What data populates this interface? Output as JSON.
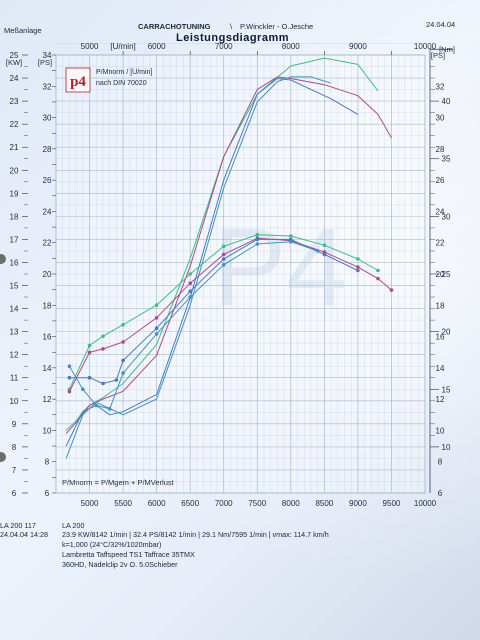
{
  "header": {
    "left": "Meßanlage",
    "company": "CARRACHOTUNING",
    "separator": "\\",
    "authors": "P.Winckler - O.Jesche",
    "date": "24.04.04",
    "title": "Leistungsdiagramm"
  },
  "logo": "p4",
  "legend_note": {
    "line1": "P/Mnorm / [U/min]",
    "line2": "nach DIN 70020"
  },
  "formula": "P/Mnorm = P/Mgem + P/MVerlust",
  "watermark": "P4",
  "footer": {
    "left_id": "LA 200 117",
    "left_date": "24.04.04  14:28",
    "run_id": "LA 200",
    "summary": "23.9 KW/8142 1/min  |  32.4 PS/8142 1/min  |  29.1 Nm/7595 1/min  |  vmax: 114.7 km/h",
    "conditions": "k=1,000 (24°C/32%/1020mbar)",
    "vehicle": "Lambretta Taffspeed TS1 Taffrace 35TMX",
    "setup": "360HD, Nadelclip 2v O. 5.0Schieber"
  },
  "colors": {
    "grid": "#9db6c8",
    "axis_text": "#1e2b45",
    "green": "#3bbf86",
    "purple": "#b0488a",
    "blue": "#4a78c9",
    "cyan": "#3e92c4"
  },
  "chart_data": {
    "type": "line",
    "title": "Leistungsdiagramm",
    "x_top_label": "[U/min]",
    "x_top_ticks": [
      5000,
      6000,
      7000,
      8000,
      9000,
      10000
    ],
    "x_top_minor": [
      5500,
      6500,
      7500,
      8500,
      9500
    ],
    "x_bottom_ticks": [
      5000,
      6000,
      7000,
      8000,
      9000,
      10000
    ],
    "x_bottom_minor": [
      5500,
      6500,
      7500,
      8500,
      9500
    ],
    "xlim": [
      4500,
      10000
    ],
    "kw_label": "[KW]",
    "kw_ticks": [
      6,
      7,
      8,
      9,
      10,
      11,
      12,
      13,
      14,
      15,
      16,
      17,
      18,
      19,
      20,
      21,
      22,
      23,
      24,
      25
    ],
    "kw_range": [
      6,
      25
    ],
    "ps_label": "[PS]",
    "ps_ticks": [
      6,
      8,
      10,
      12,
      14,
      16,
      18,
      20,
      22,
      24,
      26,
      28,
      30,
      32,
      34
    ],
    "ps_range": [
      6,
      34
    ],
    "ps_right_ticks": [
      6,
      8,
      10,
      12,
      14,
      16,
      18,
      20,
      22,
      24,
      26,
      28,
      30,
      32
    ],
    "nm_label": "[Nm]",
    "nm_ticks": [
      10,
      15,
      20,
      25,
      30,
      35,
      40
    ],
    "nm_minor": [
      11,
      12,
      13,
      14,
      16,
      17,
      18,
      19,
      21,
      22,
      23,
      24,
      26,
      27,
      28,
      29,
      31,
      32,
      33,
      34,
      36,
      37,
      38,
      39,
      41,
      42,
      43
    ],
    "nm_range": [
      6,
      44
    ],
    "grid": true,
    "series": [
      {
        "color_key": "green",
        "axis": "ps",
        "x": [
          4650,
          4800,
          4900,
          5000,
          5200,
          5500,
          6000,
          6500,
          7000,
          7500,
          8000,
          8500,
          9000,
          9300
        ],
        "y": [
          10,
          10.6,
          11.2,
          11.6,
          12.1,
          13,
          15.5,
          21,
          27.5,
          31.5,
          33.3,
          33.8,
          33.4,
          31.7
        ]
      },
      {
        "color_key": "purple",
        "axis": "ps",
        "x": [
          4650,
          4800,
          5000,
          5200,
          5500,
          6000,
          6500,
          7000,
          7500,
          7800,
          8000,
          8500,
          9000,
          9300,
          9500
        ],
        "y": [
          9.8,
          10.5,
          11.6,
          12,
          12.5,
          14.8,
          20.5,
          27.5,
          31.8,
          32.6,
          32.5,
          32.1,
          31.4,
          30.2,
          28.7
        ]
      },
      {
        "color_key": "blue",
        "axis": "ps",
        "x": [
          4650,
          4900,
          5100,
          5300,
          5500,
          6000,
          6500,
          7000,
          7500,
          7800,
          8000,
          8200,
          8600,
          9000
        ],
        "y": [
          9,
          11.2,
          11.6,
          11,
          11.2,
          12.3,
          18.5,
          26,
          31.5,
          32.5,
          32.4,
          32,
          31.2,
          30.2
        ]
      },
      {
        "color_key": "cyan",
        "axis": "ps",
        "x": [
          4650,
          4900,
          5100,
          5300,
          5500,
          6000,
          6500,
          7000,
          7500,
          7800,
          8000,
          8300,
          8600
        ],
        "y": [
          8.2,
          11,
          11.8,
          11.4,
          11,
          12,
          18,
          25.5,
          31,
          32.3,
          32.6,
          32.6,
          32.2
        ]
      },
      {
        "color_key": "green",
        "axis": "nm",
        "x": [
          4700,
          5000,
          5200,
          5500,
          6000,
          6500,
          7000,
          7500,
          8000,
          8500,
          9000,
          9300
        ],
        "y": [
          15,
          18.8,
          19.6,
          20.6,
          22.3,
          25,
          27.4,
          28.4,
          28.3,
          27.5,
          26.3,
          25.3
        ]
      },
      {
        "color_key": "purple",
        "axis": "nm",
        "x": [
          4700,
          5000,
          5200,
          5500,
          6000,
          6500,
          7000,
          7500,
          8000,
          8500,
          9000,
          9300,
          9500
        ],
        "y": [
          14.8,
          18.2,
          18.5,
          19.1,
          21.2,
          24.2,
          26.7,
          28.1,
          27.9,
          26.9,
          25.6,
          24.6,
          23.6
        ]
      },
      {
        "color_key": "blue",
        "axis": "nm",
        "x": [
          4700,
          5000,
          5200,
          5400,
          5500,
          6000,
          6500,
          7000,
          7500,
          8000,
          8500,
          9000
        ],
        "y": [
          16,
          16,
          15.5,
          15.8,
          17.5,
          20.3,
          23.5,
          26.3,
          28,
          28,
          26.7,
          25.3
        ]
      },
      {
        "color_key": "cyan",
        "axis": "nm",
        "x": [
          4700,
          4900,
          5100,
          5300,
          5500,
          6000,
          6500,
          7000,
          7500,
          8000,
          8400
        ],
        "y": [
          17,
          15,
          13.6,
          13.3,
          16.4,
          19.8,
          23,
          25.8,
          27.6,
          27.8,
          27
        ]
      }
    ]
  }
}
